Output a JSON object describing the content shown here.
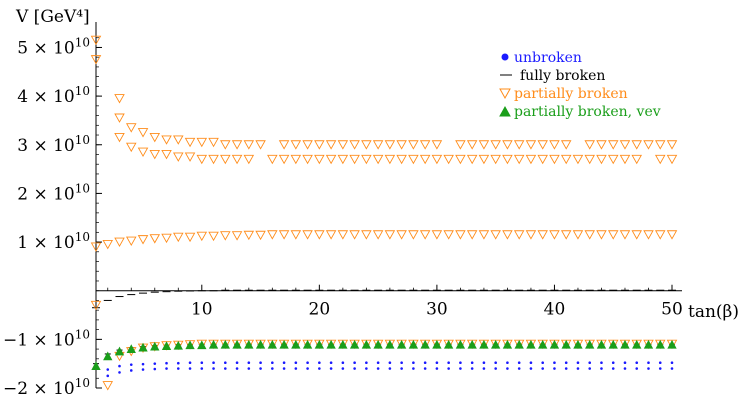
{
  "chart_data": {
    "type": "scatter",
    "title": "",
    "xlabel": "tan(β)",
    "ylabel": "V [GeV⁴]",
    "xlim": [
      1,
      50
    ],
    "ylim": [
      -20000000000.0,
      54000000000.0
    ],
    "x_ticks": [
      10,
      20,
      30,
      40,
      50
    ],
    "x_tick_labels": [
      "10",
      "20",
      "30",
      "40",
      "50"
    ],
    "y_ticks": [
      -20000000000.0,
      -10000000000.0,
      10000000000.0,
      20000000000.0,
      30000000000.0,
      40000000000.0,
      50000000000.0
    ],
    "y_tick_mantissas": [
      "−2",
      "−1",
      "1",
      "2",
      "3",
      "4",
      "5"
    ],
    "y_tick_base": "× 10",
    "y_tick_exponent": "10",
    "grid": false,
    "legend_position": "top-right",
    "series": [
      {
        "name": "unbroken",
        "marker": "dot",
        "color": "#1a1aff",
        "x": [
          2,
          3,
          4,
          5,
          6,
          7,
          8,
          9,
          10,
          11,
          12,
          13,
          14,
          15,
          16,
          17,
          18,
          19,
          20,
          21,
          22,
          23,
          24,
          25,
          26,
          27,
          28,
          29,
          30,
          31,
          32,
          33,
          34,
          35,
          36,
          37,
          38,
          39,
          40,
          41,
          42,
          43,
          44,
          45,
          46,
          47,
          48,
          49,
          50
        ],
        "y": [
          -17500000000.0,
          -16800000000.0,
          -16400000000.0,
          -16200000000.0,
          -16100000000.0,
          -16000000000.0,
          -16000000000.0,
          -16000000000.0,
          -16000000000.0,
          -16000000000.0,
          -16000000000.0,
          -16000000000.0,
          -16000000000.0,
          -16000000000.0,
          -16000000000.0,
          -16000000000.0,
          -16000000000.0,
          -16000000000.0,
          -16000000000.0,
          -16000000000.0,
          -16000000000.0,
          -16000000000.0,
          -16000000000.0,
          -16000000000.0,
          -16000000000.0,
          -16000000000.0,
          -16000000000.0,
          -16000000000.0,
          -16000000000.0,
          -16000000000.0,
          -16000000000.0,
          -16000000000.0,
          -16000000000.0,
          -16000000000.0,
          -16000000000.0,
          -16000000000.0,
          -16000000000.0,
          -16000000000.0,
          -16000000000.0,
          -16000000000.0,
          -16000000000.0,
          -16000000000.0,
          -16000000000.0,
          -16000000000.0,
          -16000000000.0,
          -16000000000.0,
          -16000000000.0,
          -16000000000.0,
          -16000000000.0
        ],
        "y2": [
          -16200000000.0,
          -15500000000.0,
          -15200000000.0,
          -15100000000.0,
          -15000000000.0,
          -14900000000.0,
          -14900000000.0,
          -14800000000.0,
          -14800000000.0,
          -14800000000.0,
          -14800000000.0,
          -14800000000.0,
          -14800000000.0,
          -14800000000.0,
          -14800000000.0,
          -14800000000.0,
          -14800000000.0,
          -14800000000.0,
          -14800000000.0,
          -14800000000.0,
          -14800000000.0,
          -14800000000.0,
          -14800000000.0,
          -14800000000.0,
          -14800000000.0,
          -14800000000.0,
          -14800000000.0,
          -14800000000.0,
          -14800000000.0,
          -14800000000.0,
          -14800000000.0,
          -14800000000.0,
          -14800000000.0,
          -14800000000.0,
          -14800000000.0,
          -14800000000.0,
          -14800000000.0,
          -14800000000.0,
          -14800000000.0,
          -14800000000.0,
          -14800000000.0,
          -14800000000.0,
          -14800000000.0,
          -14800000000.0,
          -14800000000.0,
          -14800000000.0,
          -14800000000.0,
          -14800000000.0,
          -14800000000.0
        ]
      },
      {
        "name": "fully broken",
        "marker": "dash",
        "color": "#000000",
        "x": [
          1,
          2,
          3,
          4,
          5,
          6,
          7,
          8,
          9,
          10,
          11,
          12,
          13,
          14,
          15,
          16,
          17,
          18,
          19,
          20,
          21,
          22,
          23,
          24,
          25,
          26,
          27,
          28,
          29,
          30,
          31,
          32,
          33,
          34,
          35,
          36,
          37,
          38,
          39,
          40,
          41,
          42,
          43,
          44,
          45,
          46,
          47,
          48,
          49,
          50
        ],
        "y": [
          -3500000000.0,
          -2000000000.0,
          -1200000000.0,
          -800000000.0,
          -500000000.0,
          -300000000.0,
          -200000000.0,
          -100000000.0,
          -50000000.0,
          0,
          0,
          100000000.0,
          100000000.0,
          100000000.0,
          100000000.0,
          100000000.0,
          100000000.0,
          100000000.0,
          100000000.0,
          100000000.0,
          100000000.0,
          100000000.0,
          100000000.0,
          100000000.0,
          100000000.0,
          100000000.0,
          100000000.0,
          100000000.0,
          100000000.0,
          100000000.0,
          100000000.0,
          100000000.0,
          100000000.0,
          100000000.0,
          100000000.0,
          100000000.0,
          100000000.0,
          100000000.0,
          100000000.0,
          100000000.0,
          100000000.0,
          100000000.0,
          100000000.0,
          100000000.0,
          100000000.0,
          100000000.0,
          100000000.0,
          100000000.0,
          100000000.0,
          100000000.0
        ],
        "y_lower": [
          -15000000000.0,
          -13000000000.0,
          -12200000000.0,
          -11700000000.0,
          -11500000000.0,
          -11300000000.0,
          -11200000000.0,
          -11100000000.0,
          -11100000000.0,
          -11000000000.0,
          -11000000000.0,
          -11000000000.0,
          -11000000000.0,
          -11000000000.0,
          -11000000000.0,
          -11000000000.0,
          -11000000000.0,
          -11000000000.0,
          -11000000000.0,
          -11000000000.0,
          -11000000000.0,
          -11000000000.0,
          -11000000000.0,
          -11000000000.0,
          -11000000000.0,
          -11000000000.0,
          -11000000000.0,
          -11000000000.0,
          -11000000000.0,
          -11000000000.0,
          -11000000000.0,
          -11000000000.0,
          -11000000000.0,
          -11000000000.0,
          -11000000000.0,
          -11000000000.0,
          -11000000000.0,
          -11000000000.0,
          -11000000000.0,
          -11000000000.0,
          -11000000000.0,
          -11000000000.0,
          -11000000000.0,
          -11000000000.0,
          -11000000000.0,
          -11000000000.0,
          -11000000000.0,
          -11000000000.0,
          -11000000000.0,
          -11000000000.0
        ]
      },
      {
        "name": "partially broken",
        "marker": "triangle-down-open",
        "color": "#ff8c1a",
        "x_upper": [
          1,
          1,
          3,
          3,
          4,
          5,
          6,
          7,
          8,
          9,
          10,
          11,
          12,
          13,
          14,
          15,
          17,
          18,
          19,
          20,
          21,
          22,
          23,
          24,
          25,
          26,
          27,
          28,
          29,
          30,
          32,
          33,
          34,
          35,
          36,
          37,
          38,
          39,
          40,
          41,
          43,
          44,
          45,
          46,
          47,
          48,
          49,
          50
        ],
        "y_upper_a": [
          51500000000.0,
          47500000000.0,
          39500000000.0,
          35500000000.0,
          33500000000.0,
          32500000000.0,
          31500000000.0,
          31000000000.0,
          31000000000.0,
          30500000000.0,
          30500000000.0,
          30500000000.0,
          30000000000.0,
          30000000000.0,
          30000000000.0,
          30000000000.0,
          30000000000.0,
          30000000000.0,
          30000000000.0,
          30000000000.0,
          30000000000.0,
          30000000000.0,
          30000000000.0,
          30000000000.0,
          30000000000.0,
          30000000000.0,
          30000000000.0,
          30000000000.0,
          30000000000.0,
          30000000000.0,
          30000000000.0,
          30000000000.0,
          30000000000.0,
          30000000000.0,
          30000000000.0,
          30000000000.0,
          30000000000.0,
          30000000000.0,
          30000000000.0,
          30000000000.0,
          30000000000.0,
          30000000000.0,
          30000000000.0,
          30000000000.0,
          30000000000.0,
          30000000000.0,
          30000000000.0,
          30000000000.0
        ],
        "x_upper_b": [
          3,
          4,
          5,
          6,
          7,
          8,
          9,
          10,
          11,
          12,
          13,
          14,
          16,
          17,
          18,
          19,
          20,
          21,
          22,
          23,
          24,
          25,
          26,
          27,
          28,
          29,
          30,
          31,
          32,
          33,
          34,
          35,
          36,
          37,
          38,
          39,
          40,
          41,
          42,
          43,
          44,
          45,
          46,
          47,
          49,
          50
        ],
        "y_upper_b": [
          31500000000.0,
          29500000000.0,
          28500000000.0,
          28000000000.0,
          28000000000.0,
          27500000000.0,
          27500000000.0,
          27000000000.0,
          27000000000.0,
          27000000000.0,
          27000000000.0,
          27000000000.0,
          27000000000.0,
          27000000000.0,
          27000000000.0,
          27000000000.0,
          27000000000.0,
          27000000000.0,
          27000000000.0,
          27000000000.0,
          27000000000.0,
          27000000000.0,
          27000000000.0,
          27000000000.0,
          27000000000.0,
          27000000000.0,
          27000000000.0,
          27000000000.0,
          27000000000.0,
          27000000000.0,
          27000000000.0,
          27000000000.0,
          27000000000.0,
          27000000000.0,
          27000000000.0,
          27000000000.0,
          27000000000.0,
          27000000000.0,
          27000000000.0,
          27000000000.0,
          27000000000.0,
          27000000000.0,
          27000000000.0,
          27000000000.0,
          27000000000.0,
          27000000000.0
        ],
        "x_mid": [
          1,
          2,
          3,
          4,
          5,
          6,
          7,
          8,
          9,
          10,
          11,
          12,
          13,
          14,
          15,
          16,
          17,
          18,
          19,
          20,
          21,
          22,
          23,
          24,
          25,
          26,
          27,
          28,
          29,
          30,
          31,
          32,
          33,
          34,
          35,
          36,
          37,
          38,
          39,
          40,
          41,
          42,
          43,
          44,
          45,
          46,
          47,
          48,
          49,
          50
        ],
        "y_mid": [
          9000000000.0,
          9500000000.0,
          10000000000.0,
          10200000000.0,
          10500000000.0,
          10700000000.0,
          10800000000.0,
          11000000000.0,
          11000000000.0,
          11200000000.0,
          11200000000.0,
          11300000000.0,
          11300000000.0,
          11400000000.0,
          11400000000.0,
          11500000000.0,
          11500000000.0,
          11500000000.0,
          11500000000.0,
          11500000000.0,
          11500000000.0,
          11500000000.0,
          11500000000.0,
          11500000000.0,
          11500000000.0,
          11500000000.0,
          11500000000.0,
          11500000000.0,
          11500000000.0,
          11500000000.0,
          11500000000.0,
          11500000000.0,
          11500000000.0,
          11500000000.0,
          11500000000.0,
          11500000000.0,
          11500000000.0,
          11500000000.0,
          11500000000.0,
          11500000000.0,
          11500000000.0,
          11500000000.0,
          11500000000.0,
          11500000000.0,
          11500000000.0,
          11500000000.0,
          11500000000.0,
          11500000000.0,
          11500000000.0,
          11500000000.0
        ],
        "x_low": [
          1,
          2,
          3,
          4,
          5,
          6,
          7,
          8,
          9,
          10,
          11,
          12,
          13,
          14,
          15,
          16,
          17,
          18,
          19,
          20,
          21,
          22,
          23,
          24,
          25,
          26,
          27,
          28,
          29,
          30,
          31,
          32,
          33,
          34,
          35,
          36,
          37,
          38,
          39,
          40,
          41,
          42,
          43,
          44,
          45,
          46,
          47,
          48,
          49,
          50
        ],
        "y_low": [
          -3000000000.0,
          -19500000000.0,
          -13500000000.0,
          -12500000000.0,
          -11800000000.0,
          -11500000000.0,
          -11300000000.0,
          -11200000000.0,
          -11100000000.0,
          -11000000000.0,
          -11000000000.0,
          -11000000000.0,
          -11000000000.0,
          -11000000000.0,
          -11000000000.0,
          -11000000000.0,
          -11000000000.0,
          -11000000000.0,
          -11000000000.0,
          -11000000000.0,
          -11000000000.0,
          -11000000000.0,
          -11000000000.0,
          -11000000000.0,
          -11000000000.0,
          -11000000000.0,
          -11000000000.0,
          -11000000000.0,
          -11000000000.0,
          -11000000000.0,
          -11000000000.0,
          -11000000000.0,
          -11000000000.0,
          -11000000000.0,
          -11000000000.0,
          -11000000000.0,
          -11000000000.0,
          -11000000000.0,
          -11000000000.0,
          -11000000000.0,
          -11000000000.0,
          -11000000000.0,
          -11000000000.0,
          -11000000000.0,
          -11000000000.0,
          -11000000000.0,
          -11000000000.0,
          -11000000000.0,
          -11000000000.0,
          -11000000000.0
        ]
      },
      {
        "name": "partially broken, vev",
        "marker": "triangle-up-filled",
        "color": "#1a9e1a",
        "x": [
          1,
          2,
          3,
          4,
          5,
          6,
          7,
          8,
          9,
          10,
          11,
          12,
          13,
          14,
          15,
          16,
          17,
          18,
          19,
          20,
          21,
          22,
          23,
          24,
          25,
          26,
          27,
          28,
          29,
          30,
          31,
          32,
          33,
          34,
          35,
          36,
          37,
          38,
          39,
          40,
          41,
          42,
          43,
          44,
          45,
          46,
          47,
          48,
          49,
          50
        ],
        "y": [
          -15500000000.0,
          -13500000000.0,
          -12500000000.0,
          -12000000000.0,
          -11700000000.0,
          -11500000000.0,
          -11400000000.0,
          -11300000000.0,
          -11200000000.0,
          -11200000000.0,
          -11100000000.0,
          -11100000000.0,
          -11100000000.0,
          -11100000000.0,
          -11100000000.0,
          -11100000000.0,
          -11100000000.0,
          -11100000000.0,
          -11100000000.0,
          -11100000000.0,
          -11100000000.0,
          -11100000000.0,
          -11100000000.0,
          -11100000000.0,
          -11100000000.0,
          -11100000000.0,
          -11100000000.0,
          -11100000000.0,
          -11100000000.0,
          -11100000000.0,
          -11100000000.0,
          -11100000000.0,
          -11100000000.0,
          -11100000000.0,
          -11100000000.0,
          -11100000000.0,
          -11100000000.0,
          -11100000000.0,
          -11100000000.0,
          -11100000000.0,
          -11100000000.0,
          -11100000000.0,
          -11100000000.0,
          -11100000000.0,
          -11100000000.0,
          -11100000000.0,
          -11100000000.0,
          -11100000000.0,
          -11100000000.0,
          -11100000000.0
        ]
      }
    ]
  }
}
